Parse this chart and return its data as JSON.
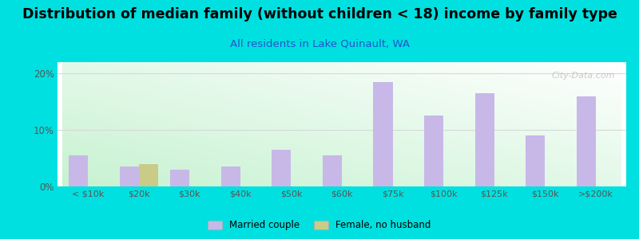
{
  "title": "Distribution of median family (without children < 18) income by family type",
  "subtitle": "All residents in Lake Quinault, WA",
  "categories": [
    "< $10k",
    "$20k",
    "$30k",
    "$40k",
    "$50k",
    "$60k",
    "$75k",
    "$100k",
    "$125k",
    "$150k",
    ">$200k"
  ],
  "married_couple": [
    5.5,
    3.5,
    3.0,
    3.5,
    6.5,
    5.5,
    18.5,
    12.5,
    16.5,
    9.0,
    16.0
  ],
  "female_no_husband": [
    0,
    4.0,
    0,
    0,
    0,
    0,
    0,
    0,
    0,
    0,
    0
  ],
  "bar_color_married": "#c8b8e8",
  "bar_color_female": "#c8cc88",
  "background_outer": "#00e0e0",
  "ylim_max": 22,
  "yticks": [
    0,
    10,
    20
  ],
  "ytick_labels": [
    "0%",
    "10%",
    "20%"
  ],
  "watermark": "City-Data.com",
  "bar_width": 0.38,
  "title_fontsize": 12.5,
  "subtitle_fontsize": 9.5,
  "subtitle_color": "#2255cc",
  "grid_color": "#d8d8d8",
  "tick_color": "#555555"
}
